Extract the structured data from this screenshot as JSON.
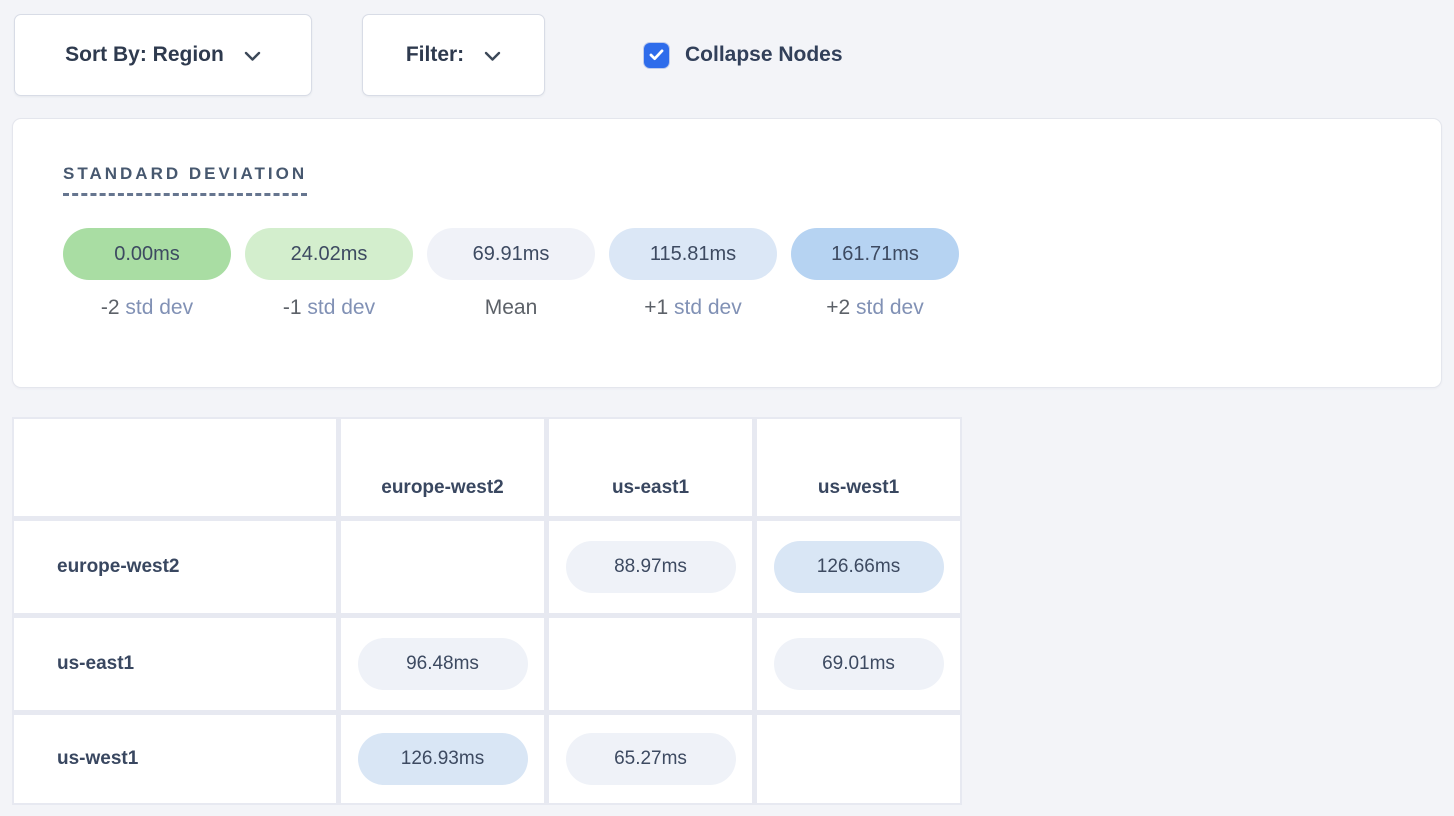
{
  "toolbar": {
    "sort_by": {
      "label": "Sort By: Region"
    },
    "filter": {
      "label": "Filter:"
    },
    "collapse": {
      "label": "Collapse Nodes",
      "checked": true,
      "accent_color": "#2e6ceb"
    }
  },
  "legend": {
    "title": "STANDARD DEVIATION",
    "items": [
      {
        "value": "0.00ms",
        "prefix": "-2",
        "suffix": "std dev",
        "color": "#a9dda3"
      },
      {
        "value": "24.02ms",
        "prefix": "-1",
        "suffix": "std dev",
        "color": "#d3eecd"
      },
      {
        "value": "69.91ms",
        "prefix": "Mean",
        "suffix": "",
        "color": "#f0f2f8"
      },
      {
        "value": "115.81ms",
        "prefix": "+1",
        "suffix": "std dev",
        "color": "#dbe7f6"
      },
      {
        "value": "161.71ms",
        "prefix": "+2",
        "suffix": "std dev",
        "color": "#b6d3f2"
      }
    ]
  },
  "matrix": {
    "pill_colors": {
      "gray": "#eff2f8",
      "blue": "#d9e6f5"
    },
    "columns": [
      "europe-west2",
      "us-east1",
      "us-west1"
    ],
    "rows": [
      {
        "label": "europe-west2",
        "cells": [
          null,
          {
            "value": "88.97ms",
            "tone": "gray"
          },
          {
            "value": "126.66ms",
            "tone": "blue"
          }
        ]
      },
      {
        "label": "us-east1",
        "cells": [
          {
            "value": "96.48ms",
            "tone": "gray"
          },
          null,
          {
            "value": "69.01ms",
            "tone": "gray"
          }
        ]
      },
      {
        "label": "us-west1",
        "cells": [
          {
            "value": "126.93ms",
            "tone": "blue"
          },
          {
            "value": "65.27ms",
            "tone": "gray"
          },
          null
        ]
      }
    ]
  }
}
